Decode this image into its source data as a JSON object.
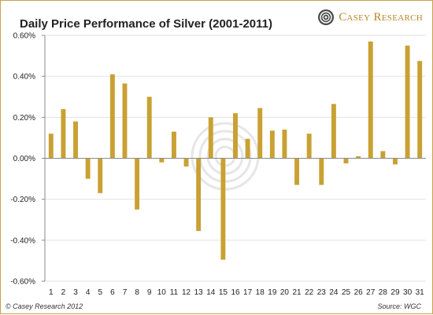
{
  "title": "Daily Price Performance of Silver (2001-2011)",
  "logo": {
    "text": "Casey Research",
    "icon": "spiral-logo-icon"
  },
  "footer": {
    "copyright": "© Casey Research 2012",
    "source": "Source: WGC"
  },
  "colors": {
    "bar": "#c9a133",
    "frame": "#c8a24a",
    "grid": "#e2e2e2",
    "axis": "#8a8a8a"
  },
  "chart_data": {
    "type": "bar",
    "categories": [
      "1",
      "2",
      "3",
      "4",
      "5",
      "6",
      "7",
      "8",
      "9",
      "10",
      "11",
      "12",
      "13",
      "14",
      "15",
      "16",
      "17",
      "18",
      "19",
      "20",
      "21",
      "22",
      "23",
      "24",
      "25",
      "26",
      "27",
      "28",
      "29",
      "30",
      "31"
    ],
    "values": [
      0.12,
      0.24,
      0.18,
      -0.1,
      -0.17,
      0.41,
      0.365,
      -0.25,
      0.3,
      -0.02,
      0.13,
      -0.04,
      -0.355,
      0.2,
      -0.495,
      0.22,
      0.095,
      0.245,
      0.135,
      0.14,
      -0.13,
      0.12,
      -0.13,
      0.265,
      -0.025,
      0.01,
      0.57,
      0.035,
      -0.03,
      0.55,
      0.475
    ],
    "ylim": [
      -0.6,
      0.6
    ],
    "yticks": [
      "-0.60%",
      "-0.40%",
      "-0.20%",
      "0.00%",
      "0.20%",
      "0.40%",
      "0.60%"
    ],
    "ytick_values": [
      -0.6,
      -0.4,
      -0.2,
      0.0,
      0.2,
      0.4,
      0.6
    ],
    "grid": true,
    "legend": "none"
  }
}
